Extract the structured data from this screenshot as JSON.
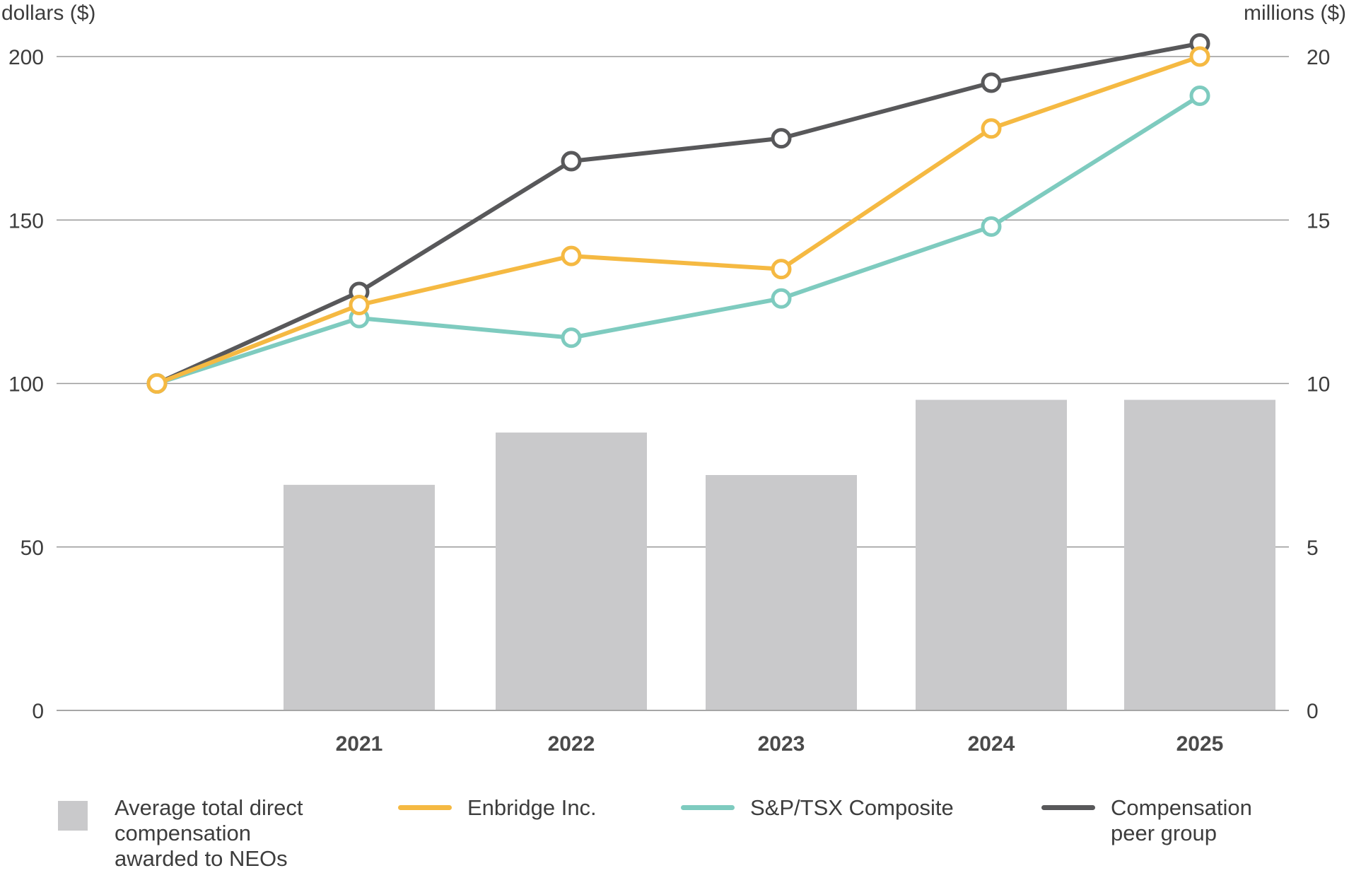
{
  "chart_data": {
    "type": "bar+line",
    "categories": [
      "",
      "2021",
      "2022",
      "2023",
      "2024",
      "2025"
    ],
    "left_axis": {
      "label": "dollars ($)",
      "ylim": [
        0,
        200
      ],
      "ticks": [
        0,
        50,
        100,
        150,
        200
      ]
    },
    "right_axis": {
      "label": "millions ($)",
      "ylim": [
        0,
        20
      ],
      "ticks": [
        0,
        5,
        10,
        15,
        20
      ]
    },
    "bars": {
      "name": "Average total direct compensation awarded to NEOs",
      "axis": "right",
      "color": "#c9c9cb",
      "values": [
        null,
        6.9,
        8.5,
        7.2,
        9.5,
        9.5
      ]
    },
    "series": [
      {
        "name": "Compensation peer group",
        "axis": "left",
        "color": "#58585a",
        "values": [
          100,
          128,
          168,
          175,
          192,
          204
        ]
      },
      {
        "name": "S&P/TSX Composite",
        "axis": "left",
        "color": "#7ecbbf",
        "values": [
          100,
          120,
          114,
          126,
          148,
          188
        ]
      },
      {
        "name": "Enbridge Inc.",
        "axis": "left",
        "color": "#f5b942",
        "values": [
          100,
          124,
          139,
          135,
          178,
          200
        ]
      }
    ],
    "grid": true,
    "legend_position": "bottom"
  },
  "legend": {
    "bars": "Average total direct\ncompensation\nawarded to NEOs",
    "enbridge": "Enbridge Inc.",
    "tsx": "S&P/TSX Composite",
    "peer": "Compensation\npeer group"
  }
}
